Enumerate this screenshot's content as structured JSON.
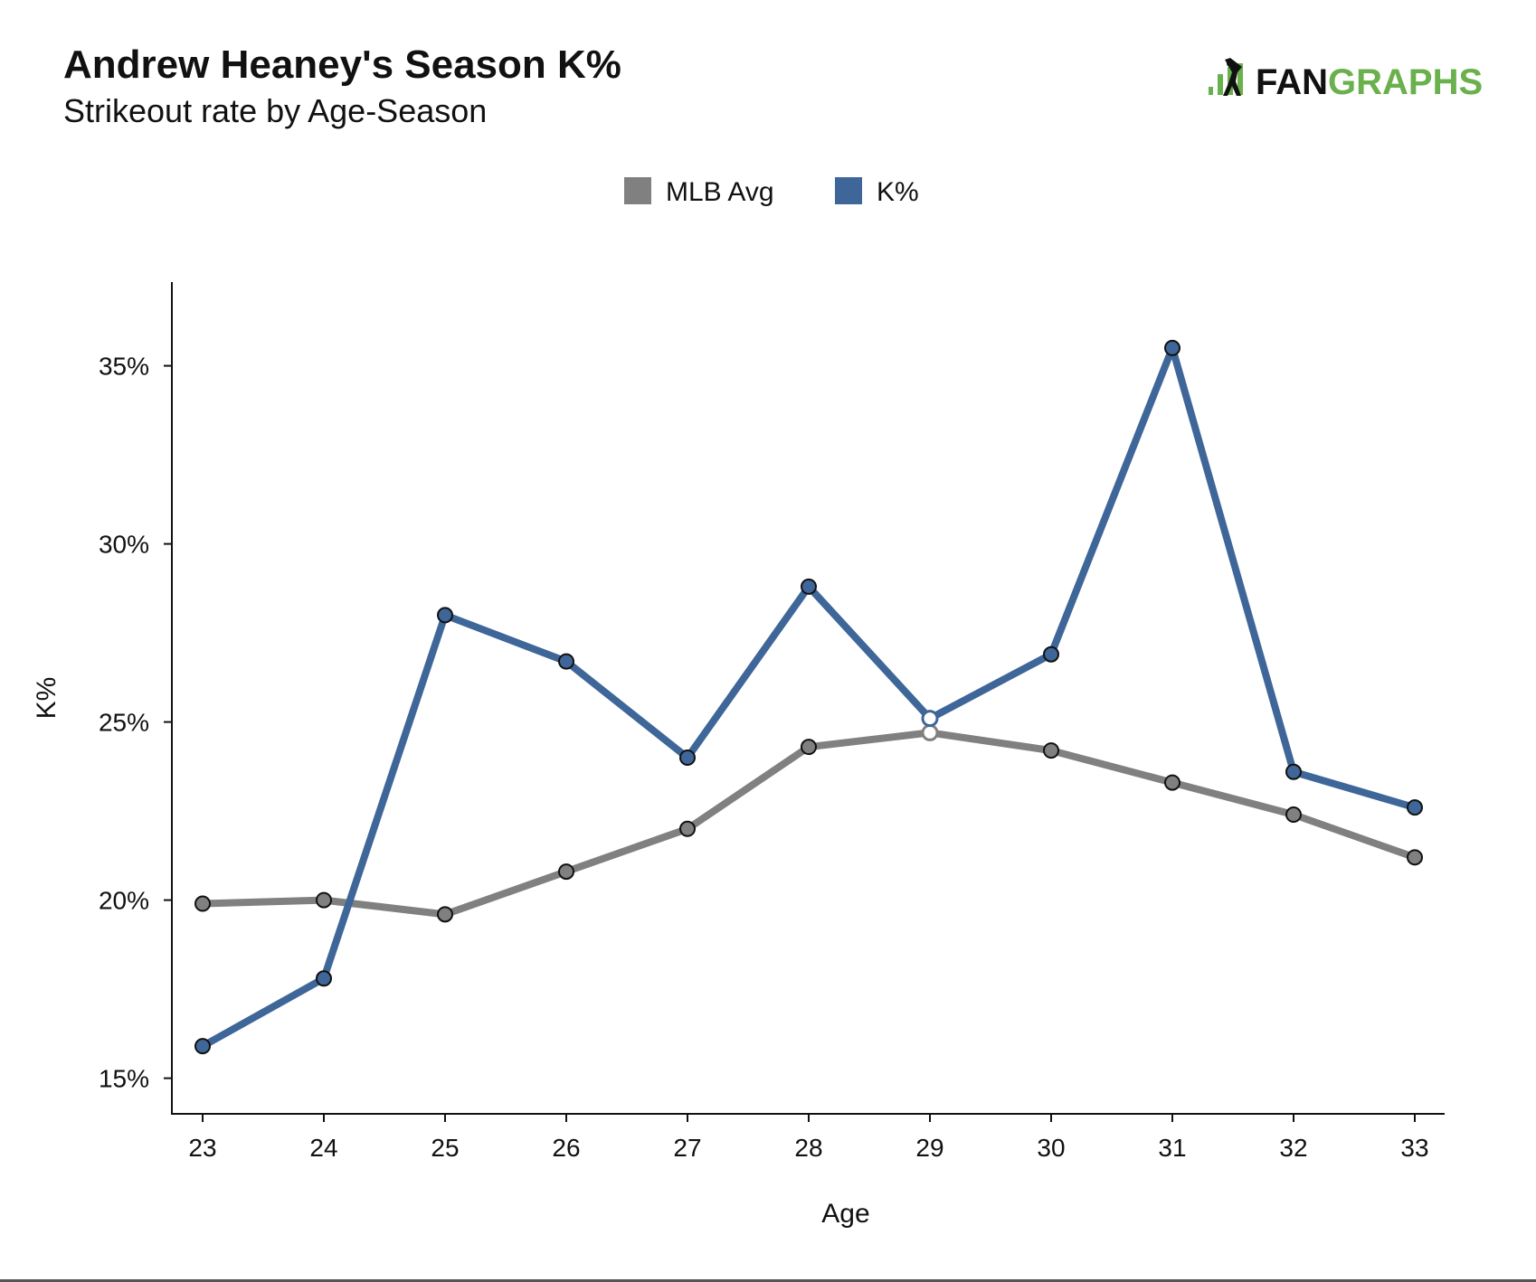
{
  "header": {
    "title": "Andrew Heaney's Season K%",
    "subtitle": "Strikeout rate by Age-Season"
  },
  "brand": {
    "logo_text_dark": "FAN",
    "logo_text_green": "GRAPHS",
    "icon": "batter-bars-icon",
    "green": "#6ab04c",
    "dark": "#111111"
  },
  "legend": {
    "placement": "top-center",
    "items": [
      {
        "label": "MLB Avg",
        "color": "#808080"
      },
      {
        "label": "K%",
        "color": "#3e6699"
      }
    ]
  },
  "chart_data": {
    "type": "line",
    "xlabel": "Age",
    "ylabel": "K%",
    "x": [
      23,
      24,
      25,
      26,
      27,
      28,
      29,
      30,
      31,
      32,
      33
    ],
    "xticks": [
      "23",
      "24",
      "25",
      "26",
      "27",
      "28",
      "29",
      "30",
      "31",
      "32",
      "33"
    ],
    "ylim": [
      0.14,
      0.3735
    ],
    "yticks": [
      {
        "value": 0.15,
        "label": "15%"
      },
      {
        "value": 0.2,
        "label": "20%"
      },
      {
        "value": 0.25,
        "label": "25%"
      },
      {
        "value": 0.3,
        "label": "30%"
      },
      {
        "value": 0.35,
        "label": "35%"
      }
    ],
    "grid": false,
    "series": [
      {
        "name": "MLB Avg",
        "color": "#808080",
        "values": [
          0.199,
          0.2,
          0.196,
          0.208,
          0.22,
          0.243,
          0.247,
          0.242,
          0.233,
          0.224,
          0.212
        ]
      },
      {
        "name": "K%",
        "color": "#3e6699",
        "values": [
          0.159,
          0.178,
          0.28,
          0.267,
          0.24,
          0.288,
          0.251,
          0.269,
          0.355,
          0.236,
          0.226
        ]
      }
    ],
    "highlight_point": {
      "x": 29,
      "marker_fill": "#ffffff"
    }
  }
}
